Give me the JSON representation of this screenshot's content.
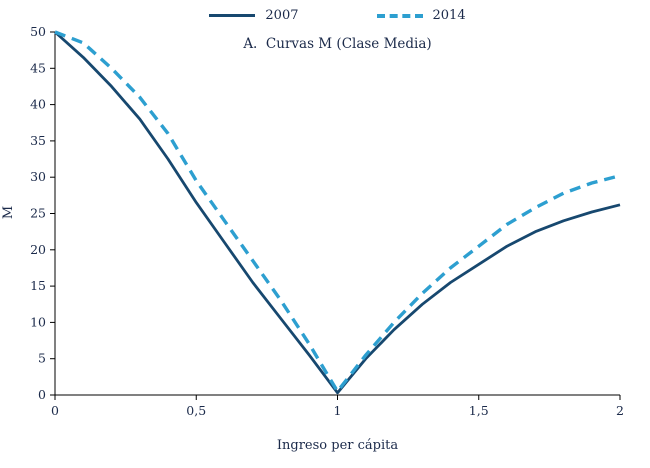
{
  "chart_data": {
    "type": "line",
    "title": "A.  Curvas M (Clase Media)",
    "xlabel": "Ingreso per cápita",
    "ylabel": "M",
    "xlim": [
      0,
      2
    ],
    "ylim": [
      0,
      50
    ],
    "grid": false,
    "legend_position": "top-center",
    "x_tick_values": [
      0,
      0.5,
      1,
      1.5,
      2
    ],
    "x_tick_labels": [
      "0",
      "0,5",
      "1",
      "1,5",
      "2"
    ],
    "y_tick_values": [
      0,
      5,
      10,
      15,
      20,
      25,
      30,
      35,
      40,
      45,
      50
    ],
    "x": [
      0,
      0.1,
      0.2,
      0.3,
      0.4,
      0.5,
      0.6,
      0.7,
      0.8,
      0.9,
      1.0,
      1.1,
      1.2,
      1.3,
      1.4,
      1.5,
      1.6,
      1.7,
      1.8,
      1.9,
      2.0
    ],
    "series": [
      {
        "name": "2007",
        "color": "#17486f",
        "style": "solid",
        "values": [
          50,
          46.5,
          42.5,
          38,
          32.5,
          26.5,
          21,
          15.5,
          10.5,
          5.5,
          0.3,
          5,
          9,
          12.5,
          15.5,
          18,
          20.5,
          22.5,
          24,
          25.2,
          26.2
        ]
      },
      {
        "name": "2014",
        "color": "#2d9fd0",
        "style": "dashed",
        "values": [
          50,
          48.5,
          45,
          41,
          36,
          29.5,
          24,
          18.5,
          13,
          7,
          0.5,
          5.5,
          10,
          14,
          17.5,
          20.5,
          23.5,
          25.8,
          27.8,
          29.2,
          30.2
        ]
      }
    ],
    "axis_color": "#000000",
    "text_color": "#1b2a4a"
  }
}
